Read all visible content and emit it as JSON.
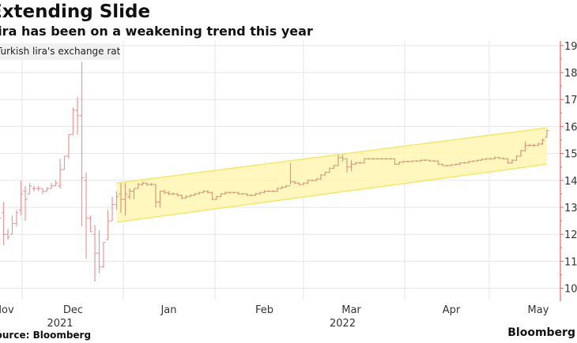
{
  "title": "Extending Slide",
  "subtitle": "Lira has been on a weakening trend this year",
  "source": "Source: Bloomberg",
  "brand": "Bloomberg",
  "colors": {
    "bars": "#e39a9a",
    "bars_in_channel": "#d49a7c",
    "axis": "#e06666",
    "channel_fill": "#fff6b3",
    "channel_edge": "#f5e66a",
    "grid": "#e6e6e6"
  },
  "chart_data": {
    "type": "ohlc",
    "title": "Extending Slide",
    "subtitle": "Lira has been on a weakening trend this year",
    "legend": [
      {
        "name": "Turkish lira's exchange rate"
      }
    ],
    "legend_placement": "top-left",
    "y_axis": {
      "side": "right",
      "ticks": [
        10,
        11,
        12,
        13,
        14,
        15,
        16,
        17,
        18,
        19
      ],
      "range": [
        9.5,
        19.1
      ]
    },
    "x_axis": {
      "month_labels": [
        {
          "label": "Nov",
          "date": "2021-11-15"
        },
        {
          "label": "Dec",
          "date": "2021-12-15"
        },
        {
          "label": "Jan",
          "date": "2022-01-14"
        },
        {
          "label": "Feb",
          "date": "2022-02-15"
        },
        {
          "label": "Mar",
          "date": "2022-03-15"
        },
        {
          "label": "Apr",
          "date": "2022-04-15"
        },
        {
          "label": "May",
          "date": "2022-05-13"
        }
      ],
      "year_labels": [
        {
          "label": "2021",
          "date": "2021-12-10"
        },
        {
          "label": "2022",
          "date": "2022-03-11"
        }
      ]
    },
    "grid": true,
    "channel": {
      "upper": [
        [
          "2021-12-29",
          13.9
        ],
        [
          "2022-05-17",
          15.95
        ]
      ],
      "lower": [
        [
          "2021-12-29",
          12.45
        ],
        [
          "2022-05-17",
          14.6
        ]
      ]
    },
    "bars_columns": [
      "date",
      "open",
      "high",
      "low",
      "close"
    ],
    "bars": [
      [
        "2021-11-22",
        13.0,
        13.5,
        11.4,
        12.6
      ],
      [
        "2021-11-23",
        12.8,
        13.2,
        11.6,
        12.0
      ],
      [
        "2021-11-24",
        12.0,
        12.2,
        11.8,
        11.9
      ],
      [
        "2021-11-25",
        12.0,
        12.7,
        12.0,
        12.4
      ],
      [
        "2021-11-26",
        12.4,
        12.9,
        12.3,
        12.8
      ],
      [
        "2021-11-29",
        12.9,
        14.0,
        12.7,
        13.5
      ],
      [
        "2021-11-30",
        13.6,
        13.8,
        12.5,
        13.3
      ],
      [
        "2021-12-01",
        13.5,
        13.9,
        13.5,
        13.8
      ],
      [
        "2021-12-02",
        13.7,
        13.8,
        13.6,
        13.7
      ],
      [
        "2021-12-03",
        13.7,
        13.8,
        13.6,
        13.7
      ],
      [
        "2021-12-06",
        13.7,
        13.7,
        13.5,
        13.6
      ],
      [
        "2021-12-07",
        13.6,
        13.75,
        13.6,
        13.7
      ],
      [
        "2021-12-08",
        13.7,
        13.9,
        13.7,
        13.8
      ],
      [
        "2021-12-09",
        13.8,
        14.0,
        13.8,
        13.9
      ],
      [
        "2021-12-10",
        13.8,
        14.8,
        13.7,
        14.4
      ],
      [
        "2021-12-13",
        14.4,
        14.9,
        14.4,
        14.9
      ],
      [
        "2021-12-14",
        14.9,
        15.7,
        14.8,
        15.7
      ],
      [
        "2021-12-15",
        15.7,
        16.7,
        15.7,
        16.6
      ],
      [
        "2021-12-16",
        16.6,
        17.1,
        15.7,
        16.4
      ],
      [
        "2021-12-17",
        16.4,
        18.4,
        12.3,
        14.1
      ],
      [
        "2021-12-20",
        14.0,
        14.3,
        11.1,
        12.6
      ],
      [
        "2021-12-21",
        12.6,
        12.7,
        12.1,
        12.1
      ],
      [
        "2021-12-22",
        12.0,
        12.35,
        10.25,
        11.3
      ],
      [
        "2021-12-23",
        11.3,
        12.15,
        10.55,
        10.8
      ],
      [
        "2021-12-24",
        10.8,
        11.7,
        10.75,
        11.7
      ],
      [
        "2021-12-27",
        11.8,
        12.9,
        11.8,
        12.5
      ],
      [
        "2021-12-28",
        12.5,
        13.4,
        12.5,
        13.1
      ],
      [
        "2021-12-29",
        13.1,
        13.6,
        12.9,
        13.4
      ],
      [
        "2021-12-30",
        13.5,
        13.9,
        12.8,
        13.3
      ],
      [
        "2021-12-31",
        13.3,
        13.9,
        12.7,
        13.5
      ],
      [
        "2022-01-03",
        13.4,
        13.7,
        13.3,
        13.6
      ],
      [
        "2022-01-04",
        13.6,
        13.7,
        13.3,
        13.7
      ],
      [
        "2022-01-05",
        13.7,
        13.9,
        13.7,
        13.85
      ],
      [
        "2022-01-06",
        13.85,
        13.95,
        13.8,
        13.9
      ],
      [
        "2022-01-07",
        13.9,
        13.9,
        13.8,
        13.85
      ],
      [
        "2022-01-10",
        13.85,
        13.9,
        13.8,
        13.85
      ],
      [
        "2022-01-11",
        13.85,
        13.85,
        13.0,
        13.2
      ],
      [
        "2022-01-12",
        13.2,
        13.6,
        13.0,
        13.6
      ],
      [
        "2022-01-13",
        13.6,
        13.65,
        13.5,
        13.55
      ],
      [
        "2022-01-14",
        13.55,
        13.6,
        13.45,
        13.5
      ],
      [
        "2022-01-17",
        13.5,
        13.55,
        13.45,
        13.5
      ],
      [
        "2022-01-18",
        13.5,
        13.52,
        13.4,
        13.45
      ],
      [
        "2022-01-19",
        13.45,
        13.48,
        13.3,
        13.35
      ],
      [
        "2022-01-20",
        13.35,
        13.45,
        13.32,
        13.4
      ],
      [
        "2022-01-21",
        13.4,
        13.48,
        13.38,
        13.45
      ],
      [
        "2022-01-24",
        13.45,
        13.53,
        13.43,
        13.5
      ],
      [
        "2022-01-25",
        13.5,
        13.58,
        13.48,
        13.55
      ],
      [
        "2022-01-26",
        13.55,
        13.63,
        13.53,
        13.6
      ],
      [
        "2022-01-27",
        13.6,
        13.63,
        13.52,
        13.55
      ],
      [
        "2022-01-28",
        13.55,
        13.57,
        13.27,
        13.3
      ],
      [
        "2022-01-31",
        13.3,
        13.43,
        13.28,
        13.4
      ],
      [
        "2022-02-01",
        13.4,
        13.53,
        13.38,
        13.5
      ],
      [
        "2022-02-02",
        13.5,
        13.58,
        13.48,
        13.55
      ],
      [
        "2022-02-03",
        13.55,
        13.58,
        13.52,
        13.55
      ],
      [
        "2022-02-04",
        13.55,
        13.58,
        13.52,
        13.55
      ],
      [
        "2022-02-07",
        13.55,
        13.57,
        13.48,
        13.5
      ],
      [
        "2022-02-08",
        13.5,
        13.53,
        13.47,
        13.5
      ],
      [
        "2022-02-09",
        13.5,
        13.52,
        13.43,
        13.45
      ],
      [
        "2022-02-10",
        13.45,
        13.48,
        13.42,
        13.45
      ],
      [
        "2022-02-11",
        13.45,
        13.53,
        13.43,
        13.5
      ],
      [
        "2022-02-14",
        13.5,
        13.58,
        13.48,
        13.55
      ],
      [
        "2022-02-15",
        13.55,
        13.63,
        13.53,
        13.6
      ],
      [
        "2022-02-16",
        13.6,
        13.63,
        13.57,
        13.6
      ],
      [
        "2022-02-17",
        13.6,
        13.63,
        13.57,
        13.6
      ],
      [
        "2022-02-18",
        13.6,
        13.73,
        13.58,
        13.7
      ],
      [
        "2022-02-21",
        13.7,
        13.78,
        13.68,
        13.75
      ],
      [
        "2022-02-22",
        13.75,
        13.83,
        13.73,
        13.8
      ],
      [
        "2022-02-23",
        13.8,
        14.65,
        13.85,
        13.95
      ],
      [
        "2022-02-24",
        13.95,
        13.98,
        13.87,
        13.9
      ],
      [
        "2022-02-25",
        13.9,
        13.93,
        13.82,
        13.85
      ],
      [
        "2022-02-28",
        13.85,
        13.93,
        13.83,
        13.9
      ],
      [
        "2022-03-01",
        13.9,
        14.03,
        13.88,
        14.0
      ],
      [
        "2022-03-02",
        14.0,
        14.03,
        13.97,
        14.0
      ],
      [
        "2022-03-03",
        14.0,
        14.08,
        13.98,
        14.05
      ],
      [
        "2022-03-04",
        14.05,
        14.23,
        14.03,
        14.2
      ],
      [
        "2022-03-07",
        14.2,
        14.33,
        14.18,
        14.3
      ],
      [
        "2022-03-08",
        14.3,
        14.48,
        14.28,
        14.45
      ],
      [
        "2022-03-09",
        14.45,
        14.58,
        14.43,
        14.55
      ],
      [
        "2022-03-10",
        14.55,
        14.95,
        14.53,
        14.85
      ],
      [
        "2022-03-11",
        14.85,
        14.95,
        14.7,
        14.8
      ],
      [
        "2022-03-14",
        14.8,
        14.8,
        14.3,
        14.5
      ],
      [
        "2022-03-15",
        14.5,
        14.75,
        14.35,
        14.6
      ],
      [
        "2022-03-16",
        14.6,
        14.68,
        14.58,
        14.65
      ],
      [
        "2022-03-17",
        14.65,
        14.68,
        14.62,
        14.65
      ],
      [
        "2022-03-18",
        14.65,
        14.83,
        14.63,
        14.8
      ],
      [
        "2022-03-21",
        14.8,
        14.83,
        14.77,
        14.8
      ],
      [
        "2022-03-22",
        14.8,
        14.83,
        14.77,
        14.8
      ],
      [
        "2022-03-23",
        14.8,
        14.83,
        14.77,
        14.8
      ],
      [
        "2022-03-24",
        14.8,
        14.83,
        14.77,
        14.8
      ],
      [
        "2022-03-25",
        14.8,
        14.83,
        14.77,
        14.8
      ],
      [
        "2022-03-28",
        14.8,
        14.83,
        14.77,
        14.8
      ],
      [
        "2022-03-29",
        14.8,
        14.82,
        14.57,
        14.6
      ],
      [
        "2022-03-30",
        14.6,
        14.7,
        14.58,
        14.68
      ],
      [
        "2022-03-31",
        14.68,
        14.72,
        14.66,
        14.7
      ],
      [
        "2022-04-01",
        14.7,
        14.73,
        14.67,
        14.7
      ],
      [
        "2022-04-04",
        14.7,
        14.73,
        14.68,
        14.72
      ],
      [
        "2022-04-05",
        14.72,
        14.75,
        14.7,
        14.72
      ],
      [
        "2022-04-06",
        14.72,
        14.77,
        14.7,
        14.75
      ],
      [
        "2022-04-07",
        14.75,
        14.78,
        14.72,
        14.75
      ],
      [
        "2022-04-08",
        14.75,
        14.77,
        14.7,
        14.72
      ],
      [
        "2022-04-11",
        14.72,
        14.75,
        14.7,
        14.72
      ],
      [
        "2022-04-12",
        14.72,
        14.74,
        14.58,
        14.6
      ],
      [
        "2022-04-13",
        14.6,
        14.62,
        14.53,
        14.55
      ],
      [
        "2022-04-14",
        14.55,
        14.58,
        14.52,
        14.55
      ],
      [
        "2022-04-15",
        14.55,
        14.6,
        14.53,
        14.58
      ],
      [
        "2022-04-18",
        14.58,
        14.62,
        14.56,
        14.6
      ],
      [
        "2022-04-19",
        14.6,
        14.67,
        14.58,
        14.65
      ],
      [
        "2022-04-20",
        14.65,
        14.68,
        14.62,
        14.65
      ],
      [
        "2022-04-21",
        14.65,
        14.72,
        14.63,
        14.7
      ],
      [
        "2022-04-22",
        14.7,
        14.74,
        14.68,
        14.72
      ],
      [
        "2022-04-25",
        14.72,
        14.77,
        14.7,
        14.75
      ],
      [
        "2022-04-26",
        14.75,
        14.8,
        14.73,
        14.78
      ],
      [
        "2022-04-27",
        14.78,
        14.83,
        14.76,
        14.8
      ],
      [
        "2022-04-28",
        14.8,
        14.83,
        14.77,
        14.8
      ],
      [
        "2022-04-29",
        14.8,
        14.88,
        14.78,
        14.85
      ],
      [
        "2022-05-02",
        14.85,
        14.87,
        14.8,
        14.82
      ],
      [
        "2022-05-03",
        14.82,
        14.84,
        14.77,
        14.8
      ],
      [
        "2022-05-04",
        14.8,
        14.82,
        14.62,
        14.65
      ],
      [
        "2022-05-05",
        14.65,
        14.78,
        14.63,
        14.75
      ],
      [
        "2022-05-06",
        14.75,
        14.93,
        14.73,
        14.9
      ],
      [
        "2022-05-09",
        14.9,
        15.13,
        14.88,
        15.1
      ],
      [
        "2022-05-10",
        15.1,
        15.45,
        15.08,
        15.3
      ],
      [
        "2022-05-11",
        15.3,
        15.35,
        15.25,
        15.3
      ],
      [
        "2022-05-12",
        15.3,
        15.35,
        15.25,
        15.3
      ],
      [
        "2022-05-13",
        15.3,
        15.4,
        15.28,
        15.35
      ],
      [
        "2022-05-16",
        15.35,
        15.55,
        15.33,
        15.5
      ],
      [
        "2022-05-17",
        15.6,
        15.88,
        15.6,
        15.85
      ]
    ]
  }
}
